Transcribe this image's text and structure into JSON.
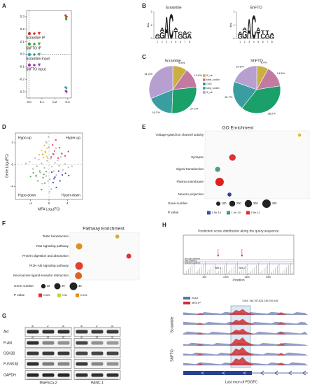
{
  "panel_labels": [
    "A",
    "B",
    "C",
    "D",
    "E",
    "F",
    "G",
    "H"
  ],
  "panel_a": {
    "type": "scatter",
    "xlim": [
      -0.02,
      0.33
    ],
    "ylim": [
      -0.35,
      0.35
    ],
    "xticks": [
      {
        "value": 0,
        "label": "0.0"
      },
      0.1,
      0.2,
      0.3
    ],
    "yticks": [
      0.3,
      0.2,
      0.1,
      {
        "value": 0,
        "label": "0.0"
      },
      -0.1,
      -0.2,
      -0.3
    ],
    "series": [
      {
        "name": "Scramble IP",
        "color": "#e0302a",
        "x": [
          0.285,
          0.29,
          0.295
        ],
        "y": [
          0.31,
          0.3,
          0.295
        ]
      },
      {
        "name": "ShFTO IP",
        "color": "#3aa63a",
        "x": [
          0.288,
          0.292,
          0.29
        ],
        "y": [
          0.285,
          0.28,
          0.275
        ]
      },
      {
        "name": "Scramble-Input",
        "color": "#2aa6a0",
        "x": [
          0.285,
          0.29,
          0.293
        ],
        "y": [
          -0.265,
          -0.27,
          -0.275
        ]
      },
      {
        "name": "ShFTO input",
        "color": "#9a3ab0",
        "x": [
          0.287,
          0.291,
          0.294
        ],
        "y": [
          -0.295,
          -0.3,
          -0.305
        ]
      }
    ]
  },
  "panel_b": {
    "type": "logo",
    "ylabel": "Bits",
    "ylim": [
      0,
      2
    ],
    "yticks": [
      0,
      1,
      2
    ],
    "positions": [
      1,
      2,
      3,
      4,
      5,
      6,
      7,
      8
    ],
    "colors": {
      "A": "#1a9a3a",
      "C": "#2a4ab0",
      "G": "#e8a020",
      "T": "#d02020"
    },
    "logos": [
      {
        "name": "Scramble",
        "stacks": [
          [
            {
              "letter": "G",
              "bits": 0.2
            },
            {
              "letter": "A",
              "bits": 0.15
            }
          ],
          [
            {
              "letter": "G",
              "bits": 0.5
            },
            {
              "letter": "A",
              "bits": 0.3
            }
          ],
          [
            {
              "letter": "A",
              "bits": 1.7
            }
          ],
          [
            {
              "letter": "C",
              "bits": 1.9
            }
          ],
          [
            {
              "letter": "T",
              "bits": 0.6
            },
            {
              "letter": "A",
              "bits": 0.2
            }
          ],
          [
            {
              "letter": "G",
              "bits": 0.3
            },
            {
              "letter": "C",
              "bits": 0.2
            }
          ],
          [
            {
              "letter": "G",
              "bits": 0.35
            },
            {
              "letter": "A",
              "bits": 0.2
            }
          ],
          [
            {
              "letter": "A",
              "bits": 0.3
            },
            {
              "letter": "C",
              "bits": 0.2
            }
          ]
        ]
      },
      {
        "name": "ShFTO",
        "stacks": [
          [
            {
              "letter": "G",
              "bits": 0.3
            },
            {
              "letter": "A",
              "bits": 0.2
            }
          ],
          [
            {
              "letter": "G",
              "bits": 0.6
            },
            {
              "letter": "A",
              "bits": 0.2
            }
          ],
          [
            {
              "letter": "A",
              "bits": 1.5
            }
          ],
          [
            {
              "letter": "C",
              "bits": 1.8
            }
          ],
          [
            {
              "letter": "T",
              "bits": 0.5
            },
            {
              "letter": "A",
              "bits": 0.3
            }
          ],
          [
            {
              "letter": "C",
              "bits": 0.4
            },
            {
              "letter": "T",
              "bits": 0.2
            }
          ],
          [
            {
              "letter": "G",
              "bits": 0.3
            },
            {
              "letter": "T",
              "bits": 0.3
            }
          ],
          [
            {
              "letter": "G",
              "bits": 0.2
            },
            {
              "letter": "A",
              "bits": 0.2
            }
          ]
        ]
      }
    ]
  },
  "panel_c": {
    "type": "pie",
    "categories": [
      "5'_utr",
      "start_codon",
      "CDS",
      "stop_codon",
      "3'_utr"
    ],
    "colors": [
      "#c9b040",
      "#c27aa0",
      "#1aa068",
      "#3a9da0",
      "#b7a0d0"
    ],
    "series": [
      {
        "name": "Scramble",
        "values": [
          9.8,
          13.6,
          27.2,
          18.2,
          31.2
        ],
        "value_labels": [
          "9.8%",
          "13.6%",
          "27.2%",
          "18.2%",
          "31.2%"
        ]
      },
      {
        "name": "ShFTO",
        "values": [
          8.0,
          14.5,
          38.2,
          19.7,
          19.6
        ],
        "value_labels": [
          "8.0%",
          "14.5%",
          "38.2%",
          "19.7%",
          "19.6%"
        ]
      }
    ]
  },
  "panel_d": {
    "type": "scatter",
    "xlabel": "MFA Log₂(FC)",
    "ylabel": "Gene Log₂(FC)",
    "xlim": [
      -7.3,
      7.3
    ],
    "ylim": [
      -6.4,
      5.8
    ],
    "xticks": [
      -4,
      0,
      4
    ],
    "yticks": [
      4,
      0,
      -4
    ],
    "series": [
      {
        "color": "#a8a8a8",
        "x": [
          -4.2,
          -3.5,
          -3,
          -2.6,
          -2.2,
          -1.9,
          -1.6,
          -1.3,
          -1,
          -0.8,
          -0.6,
          -0.4,
          -0.2,
          0,
          0.2,
          0.4,
          0.6,
          0.8,
          1,
          1.3,
          1.6,
          1.9,
          2.2,
          2.6,
          3,
          3.5,
          4.2,
          -2.8,
          2.8,
          -1.5,
          1.5,
          -0.5,
          0.5,
          0.1,
          -0.1,
          -5,
          5
        ],
        "y": [
          0.5,
          -0.8,
          1.2,
          -0.3,
          0.9,
          -1.5,
          0.2,
          1.8,
          -0.6,
          2.4,
          -2.1,
          0.7,
          -3,
          3.2,
          -2.7,
          1.1,
          -0.4,
          2,
          -1.2,
          0.3,
          -1.9,
          0.8,
          -0.2,
          1.4,
          -1,
          0.1,
          -0.5,
          -2.2,
          2.1,
          -3.5,
          3,
          4,
          -4.5,
          -5,
          5.1,
          0.2,
          -0.3
        ]
      },
      {
        "name": "Hypo-up",
        "color": "#e8b820",
        "x": [
          -0.5,
          -0.8,
          -1.2,
          -0.4,
          -1.6,
          -0.7,
          -2.1,
          -1,
          -0.3,
          -1.4
        ],
        "y": [
          1.5,
          2.2,
          1.3,
          3,
          2.6,
          4.2,
          1.8,
          3.5,
          1.2,
          1.9
        ]
      },
      {
        "name": "Hyper-up",
        "color": "#e02020",
        "x": [
          0.5,
          1.2,
          2,
          0.8,
          2.8,
          1.5,
          3.5,
          1,
          2.3,
          4.2
        ],
        "y": [
          1.4,
          2.5,
          1.2,
          3.6,
          2,
          4.5,
          1.6,
          1.9,
          3.1,
          2.4
        ]
      },
      {
        "name": "Hypo-down",
        "color": "#3a9a3a",
        "x": [
          -0.6,
          -1.3,
          -2,
          -0.9,
          -2.8,
          -1.6,
          -3.4,
          -1.1,
          -2.4,
          -4
        ],
        "y": [
          -1.3,
          -2.4,
          -1.2,
          -3.4,
          -2,
          -4.6,
          -1.5,
          -1.8,
          -3,
          -2.2
        ]
      },
      {
        "name": "Hyper-down",
        "color": "#2030a0",
        "x": [
          0.6,
          1.3,
          2.1,
          0.9,
          2.9,
          1.6,
          3.6,
          1.1,
          2.4,
          4.3
        ],
        "y": [
          -1.4,
          -2.3,
          -1.2,
          -3.3,
          -1.9,
          -4.2,
          -1.6,
          -2.6,
          -3,
          -2
        ]
      }
    ]
  },
  "panel_e": {
    "type": "dot",
    "title": "GO Enrichment",
    "xlim": [
      0,
      1
    ],
    "categories": [
      "Voltage-gated ion channel activity",
      "Synapse",
      "Signal transduction",
      "Plasma membrane",
      "Neuron projection"
    ],
    "x": [
      0.93,
      0.25,
      0.1,
      0.12,
      0.22
    ],
    "gene_number": [
      60,
      240,
      150,
      400,
      90
    ],
    "colors": [
      "#d8c030",
      "#e03030",
      "#4aa080",
      "#e02020",
      "#3040a0"
    ],
    "size_legend": {
      "title": "Gene number",
      "values": [
        100,
        200,
        300,
        400
      ]
    },
    "color_legend": {
      "title": "P value",
      "labels": [
        "1.5e-10",
        "1.0e-10",
        "5.0e-11"
      ],
      "colors": [
        "#3a50b0",
        "#3aa070",
        "#e03030"
      ]
    }
  },
  "panel_f": {
    "type": "dot",
    "title": "Pathway Enrichment",
    "xlim": [
      0,
      1
    ],
    "categories": [
      "Taste transduction",
      "Ras signaling pathway",
      "Protein digestion and absorption",
      "PI3K-Akt signaling pathway",
      "Neuroactive ligand-receptor interaction"
    ],
    "x": [
      0.7,
      0.1,
      0.88,
      0.1,
      0.09
    ],
    "gene_number": [
      8,
      20,
      12,
      30,
      25
    ],
    "colors": [
      "#d8b020",
      "#e09020",
      "#e03030",
      "#e04030",
      "#e06020"
    ],
    "size_legend": {
      "title": "Gene number",
      "values": [
        10,
        20,
        30
      ]
    },
    "color_legend": {
      "title": "P value",
      "labels": [
        "0.005",
        "0.01",
        "0.015"
      ],
      "colors": [
        "#e03030",
        "#c8d040",
        "#e09020"
      ]
    }
  },
  "panel_g": {
    "rows": [
      "Akt",
      "P-Akt",
      "GSK3β",
      "P-GSK3β",
      "GAPDH"
    ],
    "lanes": [
      "Scramble",
      "shFTO-A",
      "shFTO-B",
      "Scramble",
      "shFTO-A",
      "shFTO-B"
    ],
    "cell_lines": [
      "MiaPaCa-2",
      "PANC-1"
    ]
  },
  "panel_h": {
    "title": "Prediction score distribution along the query sequence",
    "xlabel": "Position",
    "xlim": [
      0,
      2600
    ],
    "xticks": [
      500,
      1000,
      1500,
      2000
    ],
    "sites": [
      {
        "label": "Site-1",
        "position": 820
      },
      {
        "label": "Site-2",
        "position": 1380
      }
    ],
    "confidence": [
      "Very high confidence",
      "High confidence",
      "Moderate confidence"
    ],
    "track_legend": [
      "Input",
      "MFA IP"
    ],
    "locus": "Chr4: 156,767,824-156,769,106",
    "groups": [
      "Scramble",
      "ShFTO"
    ],
    "gene": "Last exon of PDGFC"
  }
}
